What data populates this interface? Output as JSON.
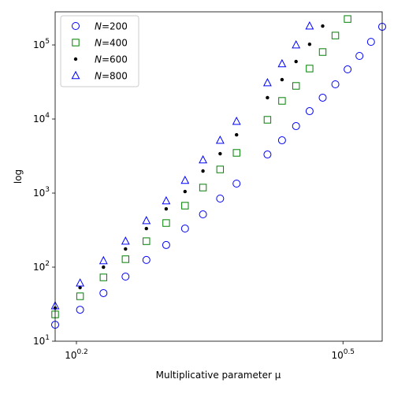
{
  "chart_data": {
    "type": "scatter",
    "xlabel": "Multiplicative parameter μ",
    "ylabel": "log",
    "xscale": "log",
    "yscale": "log",
    "xlim": [
      1.5,
      3.5
    ],
    "ylim": [
      10,
      280000
    ],
    "xticks": [
      {
        "value": 1.585,
        "label": "10^0.2"
      },
      {
        "value": 3.162,
        "label": "10^0.5"
      }
    ],
    "yticks": [
      {
        "value": 10,
        "label": "10^1"
      },
      {
        "value": 100,
        "label": "10^2"
      },
      {
        "value": 1000,
        "label": "10^3"
      },
      {
        "value": 10000,
        "label": "10^4"
      },
      {
        "value": 100000,
        "label": "10^5"
      }
    ],
    "legend": "upper left",
    "series": [
      {
        "name": "N=200",
        "marker": "circle",
        "color": "blue",
        "x": [
          1.5,
          1.6,
          1.7,
          1.8,
          1.9,
          2.0,
          2.1,
          2.2,
          2.3,
          2.4,
          2.6,
          2.7,
          2.8,
          2.9,
          3.0,
          3.1,
          3.2,
          3.3,
          3.4,
          3.5
        ],
        "values": [
          16.7,
          26.6,
          44.6,
          74.5,
          125,
          199,
          332,
          516,
          843,
          1342,
          3320,
          5160,
          8020,
          12770,
          19400,
          29400,
          46800,
          71000,
          110000,
          176000
        ]
      },
      {
        "name": "N=400",
        "marker": "square",
        "color": "green",
        "x": [
          1.5,
          1.6,
          1.7,
          1.8,
          1.9,
          2.0,
          2.1,
          2.2,
          2.3,
          2.4,
          2.6,
          2.7,
          2.8,
          2.9,
          3.0,
          3.1,
          3.2
        ],
        "values": [
          23,
          40.4,
          72.7,
          128,
          224,
          394,
          676,
          1187,
          2085,
          3490,
          9760,
          17570,
          27990,
          48000,
          80200,
          134000,
          224000
        ]
      },
      {
        "name": "N=600",
        "marker": "dot",
        "color": "black",
        "x": [
          1.5,
          1.6,
          1.7,
          1.8,
          1.9,
          2.0,
          2.1,
          2.2,
          2.3,
          2.4,
          2.6,
          2.7,
          2.8,
          2.9,
          3.0
        ],
        "values": [
          28,
          52.9,
          100,
          176,
          332,
          612,
          1050,
          1986,
          3400,
          6120,
          19400,
          34000,
          59800,
          102000,
          180000
        ]
      },
      {
        "name": "N=800",
        "marker": "triangle",
        "color": "blue",
        "x": [
          1.5,
          1.6,
          1.7,
          1.8,
          1.9,
          2.0,
          2.1,
          2.2,
          2.3,
          2.4,
          2.6,
          2.7,
          2.8,
          2.9
        ],
        "values": [
          30,
          61,
          122,
          224,
          424,
          783,
          1480,
          2800,
          5160,
          9290,
          30800,
          55600,
          100000,
          180000
        ]
      }
    ]
  }
}
